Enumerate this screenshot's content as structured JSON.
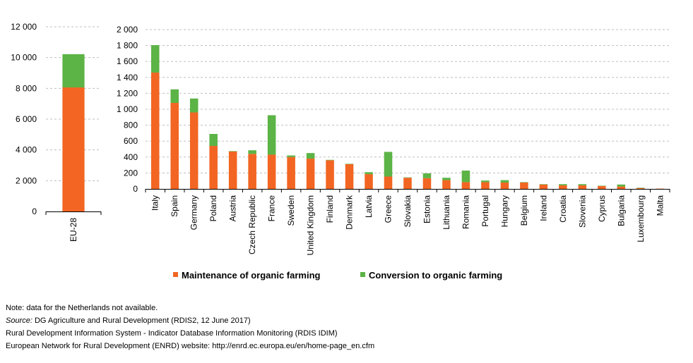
{
  "chart_data": [
    {
      "type": "bar",
      "stacked": true,
      "categories": [
        "EU-28"
      ],
      "series": [
        {
          "name": "Maintenance of organic farming",
          "color": "#f26522",
          "values": [
            8060
          ]
        },
        {
          "name": "Conversion to organic farming",
          "color": "#5cb346",
          "values": [
            2160
          ]
        }
      ],
      "ylim": [
        0,
        12000
      ],
      "yticks": [
        "0",
        "2 000",
        "4 000",
        "6 000",
        "8 000",
        "10 000",
        "12 000"
      ],
      "grid": true
    },
    {
      "type": "bar",
      "stacked": true,
      "categories": [
        "Italy",
        "Spain",
        "Germany",
        "Poland",
        "Austria",
        "Czech Republic",
        "France",
        "Sweden",
        "United Kingdom",
        "Finland",
        "Denmark",
        "Latvia",
        "Greece",
        "Slovakia",
        "Estonia",
        "Lithuania",
        "Romania",
        "Portugal",
        "Hungary",
        "Belgium",
        "Ireland",
        "Croatia",
        "Slovenia",
        "Cyprus",
        "Bulgaria",
        "Luxembourg",
        "Malta"
      ],
      "series": [
        {
          "name": "Maintenance of organic farming",
          "color": "#f26522",
          "values": [
            1460,
            1080,
            960,
            540,
            470,
            440,
            430,
            400,
            380,
            360,
            310,
            185,
            155,
            140,
            135,
            110,
            85,
            85,
            80,
            80,
            55,
            45,
            45,
            35,
            30,
            10,
            3
          ]
        },
        {
          "name": "Conversion to organic farming",
          "color": "#5cb346",
          "values": [
            345,
            170,
            175,
            150,
            5,
            45,
            495,
            20,
            70,
            5,
            5,
            25,
            310,
            5,
            60,
            30,
            145,
            20,
            30,
            5,
            5,
            15,
            15,
            5,
            25,
            5,
            0
          ]
        }
      ],
      "ylim": [
        0,
        2000
      ],
      "yticks": [
        "0",
        "200",
        "400",
        "600",
        "800",
        "1 000",
        "1 200",
        "1 400",
        "1 600",
        "1 800",
        "2 000"
      ],
      "grid": true,
      "legend_position": "bottom"
    }
  ],
  "notes": {
    "note": "Note: data for the Netherlands not available.",
    "source_label": "Source:",
    "source_text": " DG Agriculture and Rural Development (RDIS2, 12 June 2017)",
    "line2": "Rural Development Information System - Indicator Database Information Monitoring (RDIS IDIM)",
    "line3": "European Network for Rural Development (ENRD) website: http://enrd.ec.europa.eu/en/home-page_en.cfm"
  }
}
